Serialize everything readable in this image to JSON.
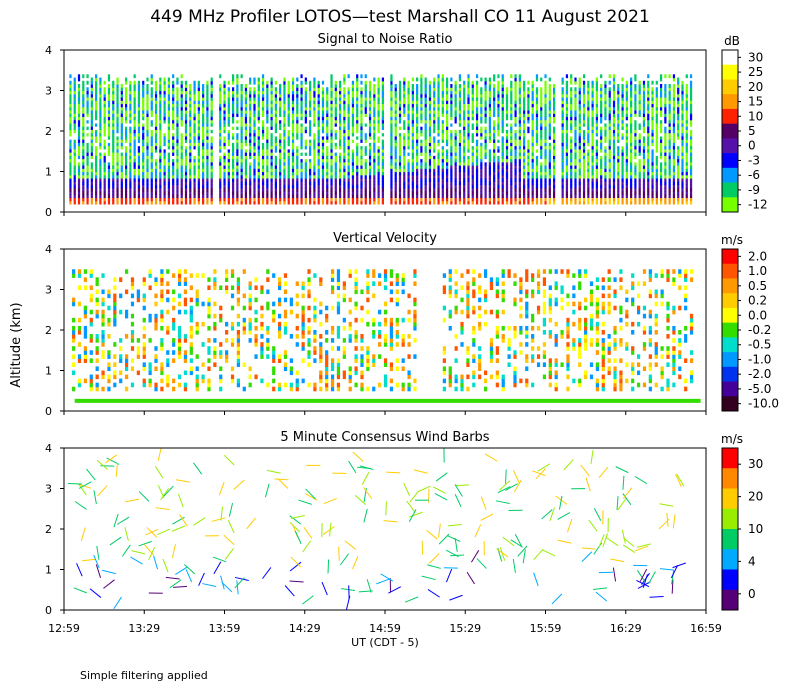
{
  "title": "449 MHz Profiler LOTOS—test Marshall CO 11 August 2021",
  "ylabel": "Altitude (km)",
  "xlabel": "UT  (CDT - 5)",
  "footer": "Simple filtering applied",
  "x_ticks": [
    "12:59",
    "13:29",
    "13:59",
    "14:29",
    "14:59",
    "15:29",
    "15:59",
    "16:29",
    "16:59"
  ],
  "y_ticks": [
    "0",
    "1",
    "2",
    "3",
    "4"
  ],
  "chart_data": [
    {
      "type": "heatmap",
      "title": "Signal to Noise Ratio",
      "units": "dB",
      "xlim": [
        "12:59",
        "16:59"
      ],
      "ylim": [
        0,
        4
      ],
      "data_gaps_ut": [
        [
          "13:54",
          "13:57"
        ],
        [
          "14:58",
          "15:00"
        ],
        [
          "16:02",
          "16:05"
        ]
      ],
      "colorbar": {
        "labels": [
          "30",
          "25",
          "20",
          "15",
          "10",
          "5",
          "0",
          "-3",
          "-6",
          "-9",
          "-12"
        ],
        "colors": [
          "#ffffff",
          "#ffff00",
          "#ffcc00",
          "#ff9900",
          "#ff2200",
          "#550066",
          "#5511aa",
          "#0000ff",
          "#0099ff",
          "#00cc66",
          "#77ff00"
        ]
      }
    },
    {
      "type": "heatmap",
      "title": "Vertical Velocity",
      "units": "m/s",
      "xlim": [
        "12:59",
        "16:59"
      ],
      "ylim": [
        0,
        4
      ],
      "colorbar": {
        "labels": [
          "2.0",
          "1.0",
          "0.5",
          "0.2",
          "0.0",
          "-0.2",
          "-0.5",
          "-1.0",
          "-2.0",
          "-5.0",
          "-10.0"
        ],
        "colors": [
          "#ff0000",
          "#ff5500",
          "#ff9900",
          "#ffcc00",
          "#ffff00",
          "#33dd00",
          "#00ddcc",
          "#0099ff",
          "#0033ee",
          "#440099",
          "#330022"
        ]
      }
    },
    {
      "type": "scatter",
      "title": "5 Minute Consensus Wind Barbs",
      "units": "m/s",
      "xlim": [
        "12:59",
        "16:59"
      ],
      "ylim": [
        0,
        4
      ],
      "colorbar": {
        "labels": [
          "30",
          "20",
          "10",
          "4",
          "0"
        ],
        "colors": [
          "#ff0000",
          "#ff8800",
          "#ffcc00",
          "#99ee00",
          "#00cc66",
          "#00aaff",
          "#0000ff",
          "#550077"
        ]
      }
    }
  ]
}
